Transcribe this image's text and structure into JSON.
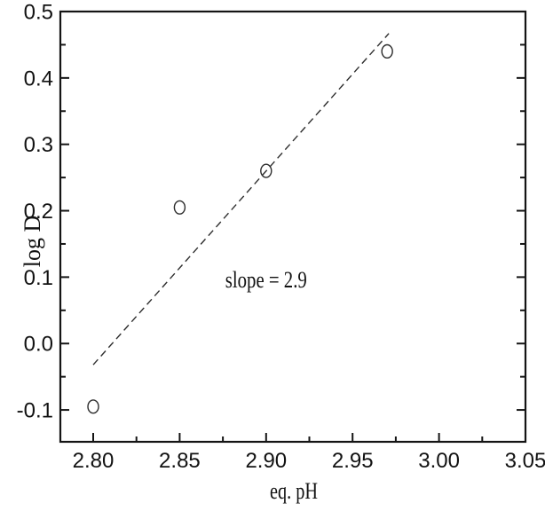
{
  "figure": {
    "background": "#ffffff",
    "axis_color": "#141414",
    "marker_color": "#2b2b2b",
    "trendline_color": "#2e2e2e"
  },
  "chart_data": {
    "type": "scatter",
    "title": "",
    "xlabel": "eq. pH",
    "ylabel": "log D",
    "xlim": [
      2.781,
      3.05
    ],
    "ylim": [
      -0.148,
      0.5
    ],
    "grid": false,
    "legend": null,
    "x_major_ticks": [
      2.8,
      2.85,
      2.9,
      2.95,
      3.0,
      3.05
    ],
    "x_tick_labels": [
      "2.80",
      "2.85",
      "2.90",
      "2.95",
      "3.00",
      "3.05"
    ],
    "x_minor_ticks": [
      2.825,
      2.875,
      2.925,
      2.975,
      3.025
    ],
    "y_major_ticks": [
      -0.1,
      0.0,
      0.1,
      0.2,
      0.3,
      0.4,
      0.5
    ],
    "y_tick_labels": [
      "-0.1",
      "0.0",
      "0.1",
      "0.2",
      "0.3",
      "0.4",
      "0.5"
    ],
    "y_minor_ticks": [
      -0.05,
      0.05,
      0.15,
      0.25,
      0.35,
      0.45
    ],
    "marker": "open-circle",
    "points": [
      {
        "x": 2.8,
        "y": -0.095
      },
      {
        "x": 2.85,
        "y": 0.205
      },
      {
        "x": 2.9,
        "y": 0.26
      },
      {
        "x": 2.97,
        "y": 0.44
      }
    ],
    "trendline": {
      "style": "dashed",
      "x1": 2.8,
      "y1": -0.032,
      "x2": 2.971,
      "y2": 0.467,
      "slope": 2.9
    },
    "annotation": {
      "text": "slope = 2.9",
      "x": 2.9,
      "y": 0.095
    }
  }
}
